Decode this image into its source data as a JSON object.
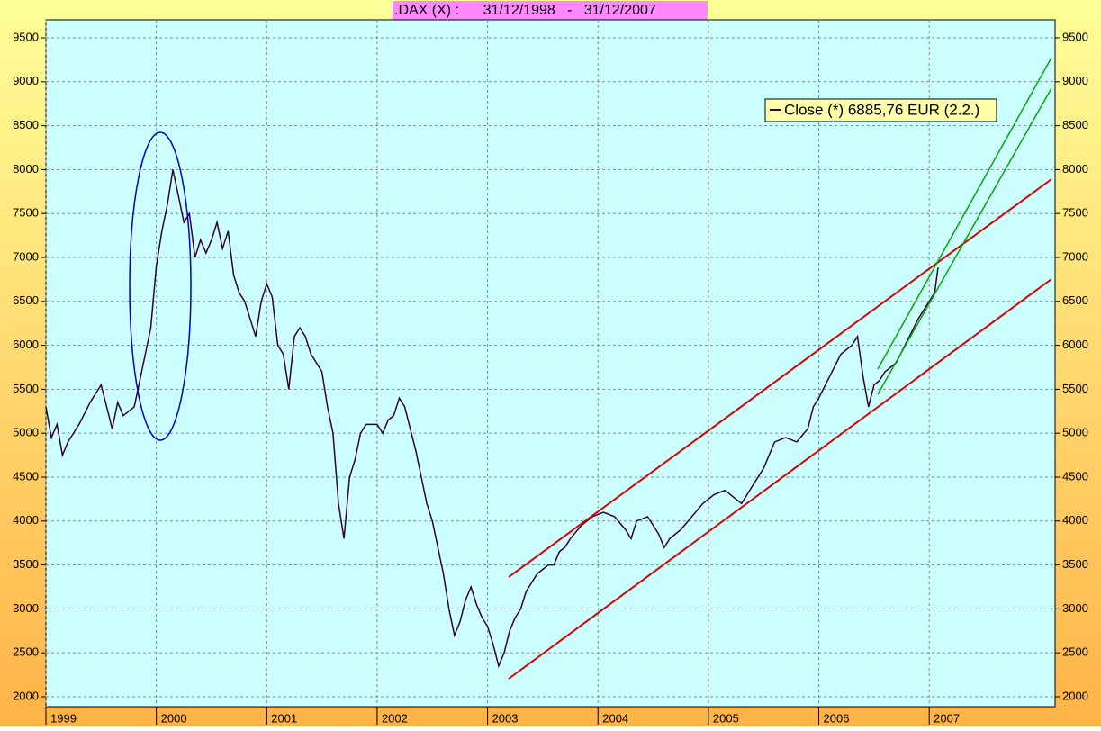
{
  "chart_data": {
    "type": "line",
    "title": ".DAX (X) :      31/12/1998   -   31/12/2007",
    "x": [
      1999.0,
      1999.05,
      1999.1,
      1999.15,
      1999.2,
      1999.3,
      1999.4,
      1999.5,
      1999.55,
      1999.6,
      1999.65,
      1999.7,
      1999.8,
      1999.85,
      1999.9,
      1999.95,
      2000.0,
      2000.05,
      2000.1,
      2000.15,
      2000.2,
      2000.25,
      2000.3,
      2000.35,
      2000.4,
      2000.45,
      2000.5,
      2000.55,
      2000.6,
      2000.65,
      2000.7,
      2000.75,
      2000.8,
      2000.85,
      2000.9,
      2000.95,
      2001.0,
      2001.05,
      2001.1,
      2001.15,
      2001.2,
      2001.25,
      2001.3,
      2001.35,
      2001.4,
      2001.45,
      2001.5,
      2001.55,
      2001.6,
      2001.65,
      2001.7,
      2001.75,
      2001.8,
      2001.85,
      2001.9,
      2002.0,
      2002.05,
      2002.1,
      2002.15,
      2002.2,
      2002.25,
      2002.3,
      2002.35,
      2002.4,
      2002.45,
      2002.5,
      2002.55,
      2002.6,
      2002.65,
      2002.7,
      2002.75,
      2002.8,
      2002.85,
      2002.9,
      2002.95,
      2003.0,
      2003.05,
      2003.1,
      2003.15,
      2003.2,
      2003.25,
      2003.3,
      2003.35,
      2003.4,
      2003.45,
      2003.5,
      2003.55,
      2003.6,
      2003.65,
      2003.7,
      2003.75,
      2003.85,
      2003.95,
      2004.05,
      2004.15,
      2004.25,
      2004.3,
      2004.35,
      2004.45,
      2004.55,
      2004.6,
      2004.65,
      2004.75,
      2004.85,
      2004.95,
      2005.05,
      2005.15,
      2005.25,
      2005.3,
      2005.4,
      2005.5,
      2005.55,
      2005.6,
      2005.7,
      2005.8,
      2005.9,
      2005.95,
      2006.0,
      2006.1,
      2006.2,
      2006.3,
      2006.35,
      2006.4,
      2006.45,
      2006.5,
      2006.55,
      2006.6,
      2006.7,
      2006.8,
      2006.9,
      2007.0,
      2007.05,
      2007.08
    ],
    "series": [
      {
        "name": "Close (*) 6885,76 EUR (2.2.)",
        "color": "#330033",
        "values": [
          5300,
          4950,
          5100,
          4750,
          4900,
          5100,
          5350,
          5550,
          5300,
          5050,
          5350,
          5200,
          5300,
          5600,
          5900,
          6200,
          6900,
          7300,
          7600,
          8000,
          7700,
          7400,
          7500,
          7000,
          7200,
          7050,
          7200,
          7400,
          7100,
          7300,
          6800,
          6600,
          6500,
          6300,
          6100,
          6500,
          6700,
          6550,
          6000,
          5900,
          5500,
          6100,
          6200,
          6100,
          5900,
          5800,
          5700,
          5300,
          5000,
          4200,
          3800,
          4500,
          4700,
          5000,
          5100,
          5100,
          5000,
          5150,
          5200,
          5400,
          5300,
          5050,
          4800,
          4500,
          4200,
          4000,
          3700,
          3400,
          3000,
          2700,
          2850,
          3100,
          3250,
          3050,
          2900,
          2800,
          2600,
          2350,
          2500,
          2750,
          2900,
          3000,
          3200,
          3300,
          3400,
          3450,
          3500,
          3500,
          3650,
          3700,
          3800,
          3950,
          4050,
          4100,
          4050,
          3900,
          3800,
          4000,
          4050,
          3850,
          3700,
          3800,
          3900,
          4050,
          4200,
          4300,
          4350,
          4250,
          4200,
          4400,
          4600,
          4750,
          4900,
          4950,
          4900,
          5050,
          5300,
          5400,
          5650,
          5900,
          6000,
          6100,
          5650,
          5300,
          5550,
          5600,
          5700,
          5800,
          6050,
          6300,
          6500,
          6600,
          6885
        ]
      }
    ],
    "xlim": [
      1999,
      2008.14
    ],
    "xticks": [
      1999,
      2000,
      2001,
      2002,
      2003,
      2004,
      2005,
      2006,
      2007
    ],
    "ylim": [
      1887,
      9705
    ],
    "yticks": [
      2000,
      2500,
      3000,
      3500,
      4000,
      4500,
      5000,
      5500,
      6000,
      6500,
      7000,
      7500,
      8000,
      8500,
      9000,
      9500
    ],
    "grid": true
  }
}
